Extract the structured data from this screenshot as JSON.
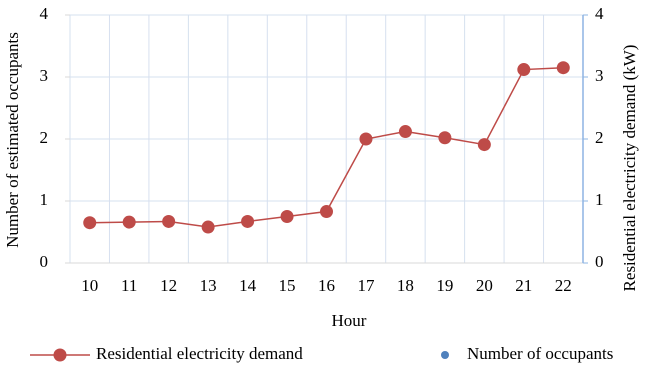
{
  "chart_data": {
    "type": "line",
    "x_label": "Hour",
    "y_label": "Number of estimated occupants",
    "y2_label": "Residential electricity demand (kW)",
    "categories": [
      "10",
      "11",
      "12",
      "13",
      "14",
      "15",
      "16",
      "17",
      "18",
      "19",
      "20",
      "21",
      "22"
    ],
    "series": [
      {
        "name": "Residential electricity demand",
        "color": "#be4b48",
        "axis": "y2",
        "values": [
          0.65,
          0.66,
          0.67,
          0.58,
          0.67,
          0.75,
          0.83,
          2.0,
          2.12,
          2.02,
          1.91,
          3.12,
          3.15
        ]
      },
      {
        "name": "Number of occupants",
        "color": "#4f81bd",
        "axis": "y",
        "values": [
          null,
          null,
          null,
          null,
          null,
          null,
          null,
          null,
          null,
          null,
          null,
          null,
          null
        ]
      }
    ],
    "ylim": [
      0,
      4
    ],
    "yticks": [
      0,
      1,
      2,
      3,
      4
    ],
    "y2lim": [
      0,
      4
    ],
    "y2ticks": [
      0,
      1,
      2,
      3,
      4
    ],
    "grid": true,
    "legend": "bottom"
  }
}
